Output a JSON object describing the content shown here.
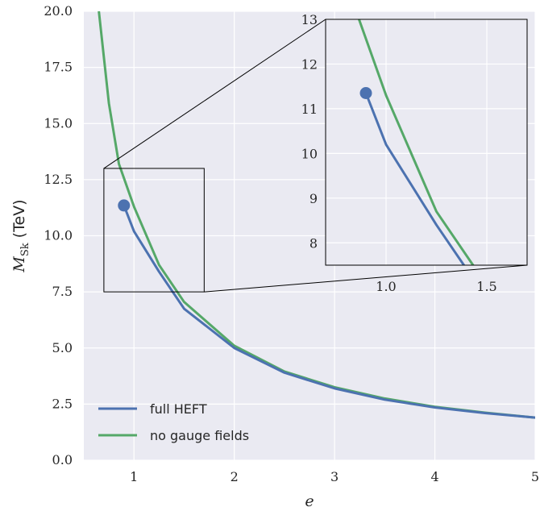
{
  "chart_data": {
    "type": "line",
    "xlabel": "e",
    "ylabel": "M_Sk (TeV)",
    "ylabel_parts": {
      "symbol": "M",
      "subscript": "Sk",
      "unit": "(TeV)"
    },
    "xlim": [
      0.5,
      5.0
    ],
    "ylim": [
      0.0,
      20.0
    ],
    "x_ticks": [
      "1",
      "2",
      "3",
      "4",
      "5"
    ],
    "x_tick_values": [
      1,
      2,
      3,
      4,
      5
    ],
    "y_ticks": [
      "0.0",
      "2.5",
      "5.0",
      "7.5",
      "10.0",
      "12.5",
      "15.0",
      "17.5",
      "20.0"
    ],
    "y_tick_values": [
      0,
      2.5,
      5,
      7.5,
      10,
      12.5,
      15,
      17.5,
      20
    ],
    "grid": true,
    "legend_position": "bottom-left",
    "colors": {
      "full_heft": "#4c72b0",
      "no_gauge": "#55a868",
      "background": "#eaeaf2",
      "grid": "#ffffff"
    },
    "series": [
      {
        "name": "full HEFT",
        "x": [
          0.9,
          1.0,
          1.25,
          1.5,
          2.0,
          2.5,
          3.0,
          3.5,
          4.0,
          4.5,
          5.0
        ],
        "y": [
          11.35,
          10.2,
          8.4,
          6.75,
          5.0,
          3.9,
          3.2,
          2.7,
          2.35,
          2.1,
          1.9
        ],
        "start_marker": true
      },
      {
        "name": "no gauge fields",
        "x": [
          0.65,
          0.75,
          0.85,
          1.0,
          1.25,
          1.5,
          2.0,
          2.5,
          3.0,
          3.5,
          4.0,
          4.5,
          5.0
        ],
        "y": [
          20.0,
          15.9,
          13.2,
          11.3,
          8.7,
          7.05,
          5.1,
          3.95,
          3.25,
          2.75,
          2.38,
          2.12,
          1.9
        ]
      }
    ],
    "inset": {
      "xlim": [
        0.7,
        1.7
      ],
      "ylim": [
        7.5,
        13.0
      ],
      "x_ticks": [
        "1.0",
        "1.5"
      ],
      "x_tick_values": [
        1.0,
        1.5
      ],
      "y_ticks": [
        "8",
        "9",
        "10",
        "11",
        "12",
        "13"
      ],
      "y_tick_values": [
        8,
        9,
        10,
        11,
        12,
        13
      ]
    }
  }
}
